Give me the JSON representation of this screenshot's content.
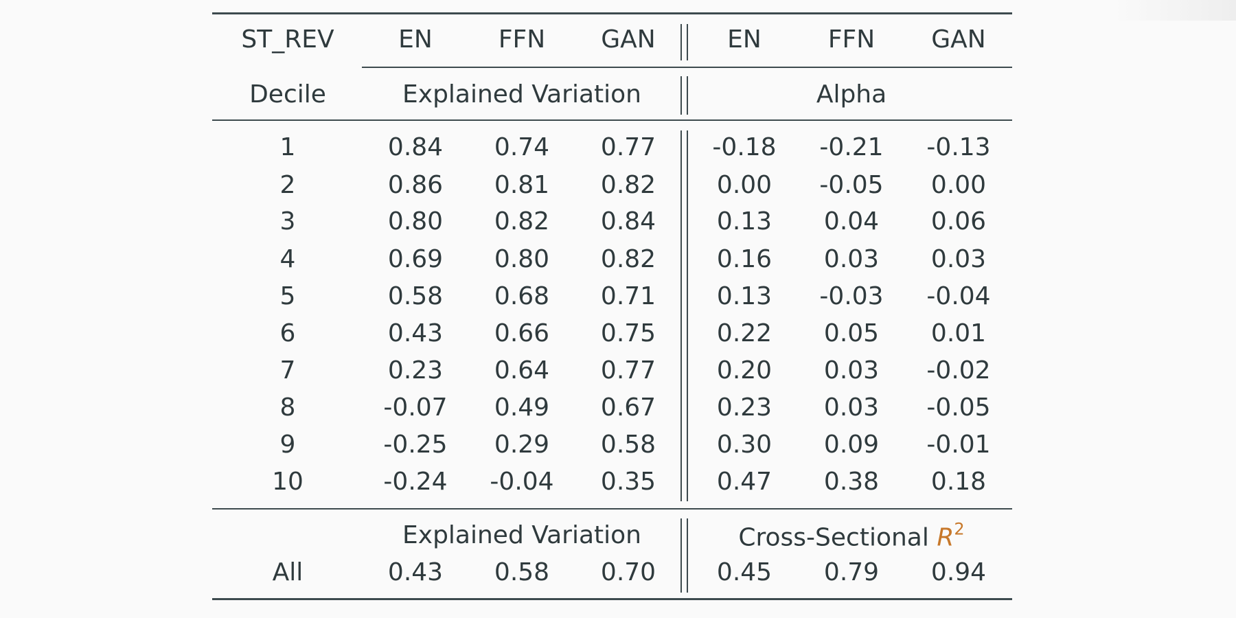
{
  "table": {
    "corner_label": "ST_REV",
    "row_label": "Decile",
    "left_columns": [
      "EN",
      "FFN",
      "GAN"
    ],
    "right_columns": [
      "EN",
      "FFN",
      "GAN"
    ],
    "left_group_label": "Explained Variation",
    "right_group_label": "Alpha",
    "rows": [
      {
        "decile": "1",
        "ev": [
          "0.84",
          "0.74",
          "0.77"
        ],
        "alpha": [
          "-0.18",
          "-0.21",
          "-0.13"
        ]
      },
      {
        "decile": "2",
        "ev": [
          "0.86",
          "0.81",
          "0.82"
        ],
        "alpha": [
          "0.00",
          "-0.05",
          "0.00"
        ]
      },
      {
        "decile": "3",
        "ev": [
          "0.80",
          "0.82",
          "0.84"
        ],
        "alpha": [
          "0.13",
          "0.04",
          "0.06"
        ]
      },
      {
        "decile": "4",
        "ev": [
          "0.69",
          "0.80",
          "0.82"
        ],
        "alpha": [
          "0.16",
          "0.03",
          "0.03"
        ]
      },
      {
        "decile": "5",
        "ev": [
          "0.58",
          "0.68",
          "0.71"
        ],
        "alpha": [
          "0.13",
          "-0.03",
          "-0.04"
        ]
      },
      {
        "decile": "6",
        "ev": [
          "0.43",
          "0.66",
          "0.75"
        ],
        "alpha": [
          "0.22",
          "0.05",
          "0.01"
        ]
      },
      {
        "decile": "7",
        "ev": [
          "0.23",
          "0.64",
          "0.77"
        ],
        "alpha": [
          "0.20",
          "0.03",
          "-0.02"
        ]
      },
      {
        "decile": "8",
        "ev": [
          "-0.07",
          "0.49",
          "0.67"
        ],
        "alpha": [
          "0.23",
          "0.03",
          "-0.05"
        ]
      },
      {
        "decile": "9",
        "ev": [
          "-0.25",
          "0.29",
          "0.58"
        ],
        "alpha": [
          "0.30",
          "0.09",
          "-0.01"
        ]
      },
      {
        "decile": "10",
        "ev": [
          "-0.24",
          "-0.04",
          "0.35"
        ],
        "alpha": [
          "0.47",
          "0.38",
          "0.18"
        ]
      }
    ],
    "summary": {
      "left_label": "Explained Variation",
      "right_label_text": "Cross-Sectional",
      "right_label_symbol": "R",
      "right_label_exponent": "2",
      "row_label": "All",
      "ev": [
        "0.43",
        "0.58",
        "0.70"
      ],
      "r2": [
        "0.45",
        "0.79",
        "0.94"
      ]
    },
    "colors": {
      "rule": "#3d4a4e",
      "text": "#2f3a3d",
      "accent": "#c7782a"
    }
  }
}
